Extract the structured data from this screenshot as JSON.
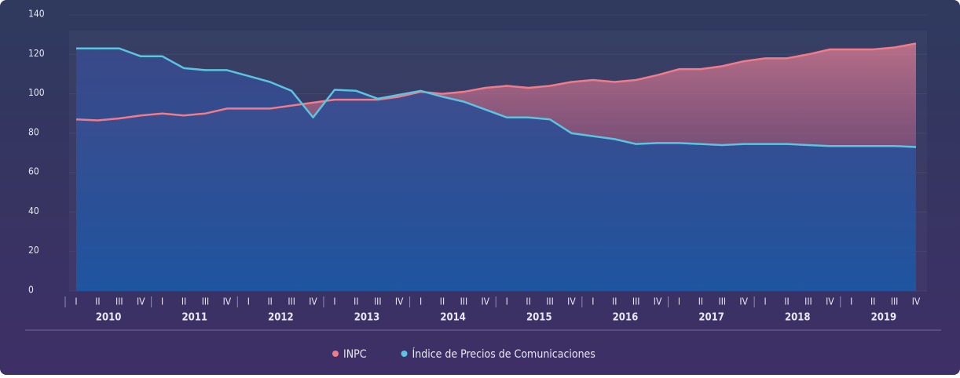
{
  "chart_data": {
    "type": "line",
    "categories": [
      "I",
      "II",
      "III",
      "IV",
      "I",
      "II",
      "III",
      "IV",
      "I",
      "II",
      "III",
      "IV",
      "I",
      "II",
      "III",
      "IV",
      "I",
      "II",
      "III",
      "IV",
      "I",
      "II",
      "III",
      "IV",
      "I",
      "II",
      "III",
      "IV",
      "I",
      "II",
      "III",
      "IV",
      "I",
      "II",
      "III",
      "IV",
      "I",
      "II",
      "III",
      "IV"
    ],
    "years": [
      "2010",
      "2011",
      "2012",
      "2013",
      "2014",
      "2015",
      "2016",
      "2017",
      "2018",
      "2019"
    ],
    "series": [
      {
        "name": "INPC",
        "color": "#f07b8a",
        "values": [
          87,
          86.5,
          87.5,
          89,
          90,
          89,
          90,
          92.5,
          92.5,
          92.5,
          94,
          95.5,
          97,
          97,
          97,
          98.5,
          101,
          100,
          101,
          103,
          104,
          103,
          104,
          106,
          107,
          106,
          107,
          109.5,
          112.5,
          112.5,
          114,
          116.5,
          118,
          118,
          120,
          122.5,
          122.5,
          122.5,
          123.5,
          125.5
        ]
      },
      {
        "name": "Índice de Precios de Comunicaciones",
        "color": "#5bc4e0",
        "values": [
          123,
          123,
          123,
          119,
          119,
          113,
          112,
          112,
          109,
          106,
          101.5,
          88,
          102,
          101.5,
          97.5,
          99.5,
          101.5,
          98.5,
          96,
          92,
          88,
          88,
          87,
          80,
          78.5,
          77,
          74.5,
          75,
          75,
          74.5,
          74,
          74.5,
          74.5,
          74.5,
          74,
          73.5,
          73.5,
          73.5,
          73.5,
          73
        ]
      }
    ],
    "ylim": [
      0,
      140
    ],
    "yticks": [
      0,
      20,
      40,
      60,
      80,
      100,
      120,
      140
    ],
    "grid": true,
    "legend": "bottom"
  }
}
